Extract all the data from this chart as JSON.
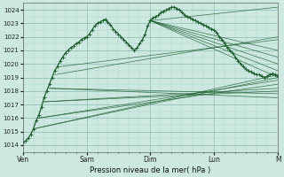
{
  "xlabel": "Pression niveau de la mer( hPa )",
  "ylim": [
    1013.5,
    1024.5
  ],
  "xlim": [
    0,
    96
  ],
  "yticks": [
    1014,
    1015,
    1016,
    1017,
    1018,
    1019,
    1020,
    1021,
    1022,
    1023,
    1024
  ],
  "xtick_labels": [
    "Ven",
    "Sam",
    "Dim",
    "Lun",
    "M"
  ],
  "xtick_positions": [
    0,
    24,
    48,
    72,
    96
  ],
  "bg_color": "#cce8e0",
  "grid_color_minor": "#aed4cc",
  "grid_color_major": "#88bbb0",
  "line_color": "#1a5c2a",
  "main_x": [
    0,
    1,
    2,
    3,
    4,
    5,
    6,
    7,
    8,
    9,
    10,
    11,
    12,
    13,
    14,
    15,
    16,
    17,
    18,
    19,
    20,
    21,
    22,
    23,
    24,
    25,
    26,
    27,
    28,
    29,
    30,
    31,
    32,
    33,
    34,
    35,
    36,
    37,
    38,
    39,
    40,
    41,
    42,
    43,
    44,
    45,
    46,
    47,
    48
  ],
  "main_y": [
    1014.2,
    1014.3,
    1014.5,
    1014.8,
    1015.2,
    1015.8,
    1016.2,
    1016.8,
    1017.5,
    1018.0,
    1018.5,
    1019.0,
    1019.5,
    1019.8,
    1020.2,
    1020.5,
    1020.8,
    1021.0,
    1021.2,
    1021.3,
    1021.5,
    1021.6,
    1021.8,
    1021.9,
    1022.0,
    1022.2,
    1022.5,
    1022.8,
    1023.0,
    1023.1,
    1023.2,
    1023.3,
    1023.1,
    1022.9,
    1022.6,
    1022.4,
    1022.2,
    1022.0,
    1021.8,
    1021.6,
    1021.4,
    1021.2,
    1021.0,
    1021.2,
    1021.5,
    1021.8,
    1022.2,
    1022.8,
    1023.2
  ],
  "forecast_lines": [
    {
      "x0": 4,
      "y0": 1015.2,
      "x1": 96,
      "y1": 1019.2
    },
    {
      "x0": 4,
      "y0": 1015.2,
      "x1": 96,
      "y1": 1019.0
    },
    {
      "x0": 6,
      "y0": 1016.0,
      "x1": 96,
      "y1": 1018.8
    },
    {
      "x0": 6,
      "y0": 1016.0,
      "x1": 96,
      "y1": 1018.5
    },
    {
      "x0": 8,
      "y0": 1017.2,
      "x1": 96,
      "y1": 1018.2
    },
    {
      "x0": 8,
      "y0": 1017.2,
      "x1": 96,
      "y1": 1018.0
    },
    {
      "x0": 10,
      "y0": 1018.2,
      "x1": 96,
      "y1": 1017.8
    },
    {
      "x0": 10,
      "y0": 1018.2,
      "x1": 96,
      "y1": 1017.5
    },
    {
      "x0": 12,
      "y0": 1019.2,
      "x1": 96,
      "y1": 1022.0
    },
    {
      "x0": 14,
      "y0": 1019.8,
      "x1": 96,
      "y1": 1021.8
    },
    {
      "x0": 48,
      "y0": 1023.2,
      "x1": 96,
      "y1": 1024.2
    },
    {
      "x0": 48,
      "y0": 1023.2,
      "x1": 96,
      "y1": 1021.0
    },
    {
      "x0": 48,
      "y0": 1023.2,
      "x1": 96,
      "y1": 1020.5
    },
    {
      "x0": 48,
      "y0": 1023.2,
      "x1": 96,
      "y1": 1020.0
    },
    {
      "x0": 48,
      "y0": 1023.2,
      "x1": 96,
      "y1": 1019.5
    },
    {
      "x0": 48,
      "y0": 1023.2,
      "x1": 96,
      "y1": 1019.0
    }
  ],
  "second_segment_x": [
    48,
    49,
    50,
    51,
    52,
    53,
    54,
    55,
    56,
    57,
    58,
    59,
    60,
    61,
    62,
    63,
    64,
    65,
    66,
    67,
    68,
    69,
    70,
    71,
    72,
    73,
    74,
    75,
    76,
    77,
    78,
    79,
    80,
    81,
    82,
    83,
    84,
    85,
    86,
    87,
    88,
    89,
    90,
    91,
    92,
    93,
    94,
    95,
    96
  ],
  "second_segment_y": [
    1023.2,
    1023.4,
    1023.5,
    1023.6,
    1023.8,
    1023.9,
    1024.0,
    1024.1,
    1024.2,
    1024.2,
    1024.1,
    1024.0,
    1023.8,
    1023.6,
    1023.5,
    1023.4,
    1023.3,
    1023.2,
    1023.1,
    1023.0,
    1022.9,
    1022.8,
    1022.7,
    1022.6,
    1022.5,
    1022.3,
    1022.0,
    1021.8,
    1021.5,
    1021.2,
    1021.0,
    1020.8,
    1020.5,
    1020.2,
    1020.0,
    1019.8,
    1019.6,
    1019.5,
    1019.4,
    1019.3,
    1019.2,
    1019.2,
    1019.1,
    1019.0,
    1019.1,
    1019.2,
    1019.3,
    1019.2,
    1019.1
  ]
}
